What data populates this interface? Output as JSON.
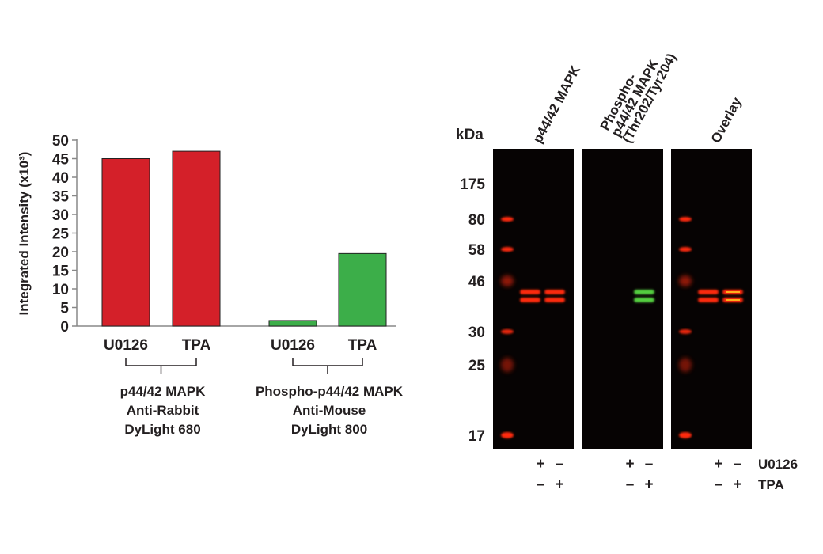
{
  "chart_data": {
    "type": "bar",
    "ylabel": "Integrated Intensity (x10³)",
    "ylim": [
      0,
      50
    ],
    "yticks": [
      0,
      5,
      10,
      15,
      20,
      25,
      30,
      35,
      40,
      45,
      50
    ],
    "grid": false,
    "categories": [
      "U0126",
      "TPA",
      "U0126",
      "TPA"
    ],
    "values": [
      45,
      47,
      1.5,
      19.5
    ],
    "bar_colors": [
      "#d42029",
      "#d42029",
      "#3cae49",
      "#3cae49"
    ],
    "groups": [
      {
        "lines": [
          "p44/42 MAPK",
          "Anti-Rabbit",
          "DyLight 680"
        ]
      },
      {
        "lines": [
          "Phospho-p44/42 MAPK",
          "Anti-Mouse",
          "DyLight 800"
        ]
      }
    ]
  },
  "blot": {
    "kda_label": "kDa",
    "markers": [
      "175",
      "80",
      "58",
      "46",
      "30",
      "25",
      "17"
    ],
    "panels": [
      {
        "title_lines": [
          "p44/42 MAPK"
        ]
      },
      {
        "title_lines": [
          "Phospho-",
          "p44/42 MAPK",
          "(Thr202/Tyr204)"
        ]
      },
      {
        "title_lines": [
          "Overlay"
        ]
      }
    ],
    "treatments": [
      {
        "name": "U0126",
        "signs": [
          "+",
          "–"
        ]
      },
      {
        "name": "TPA",
        "signs": [
          "–",
          "+"
        ]
      }
    ],
    "colors": {
      "red_channel": "#ff2a10",
      "green_channel": "#55d040",
      "overlay": "#ffd020"
    }
  }
}
